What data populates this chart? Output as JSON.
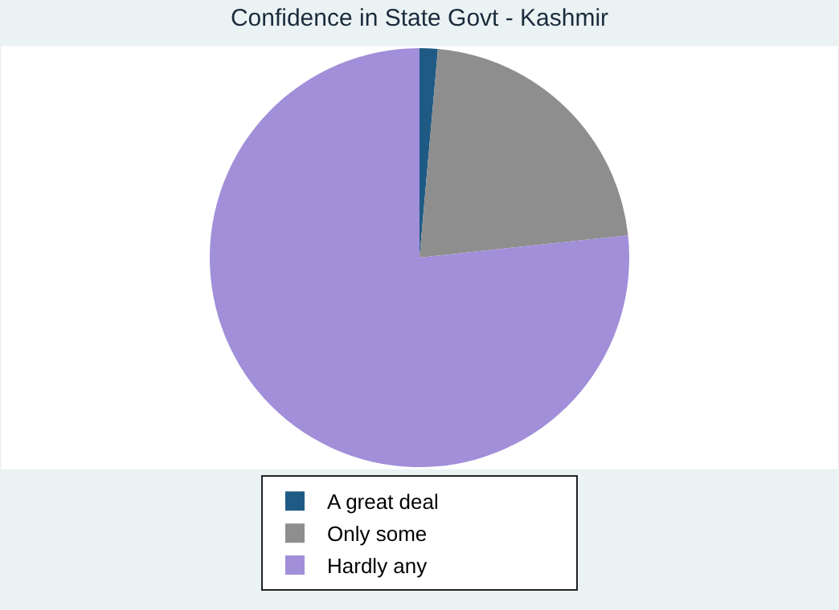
{
  "chart_data": {
    "type": "pie",
    "title": "Confidence in State Govt - Kashmir",
    "categories": [
      "A great deal",
      "Only some",
      "Hardly any"
    ],
    "values": [
      1.4,
      21.9,
      76.7
    ],
    "colors": [
      "#1f5a85",
      "#8e8e8e",
      "#a18fd9"
    ],
    "legend": "bottom"
  }
}
